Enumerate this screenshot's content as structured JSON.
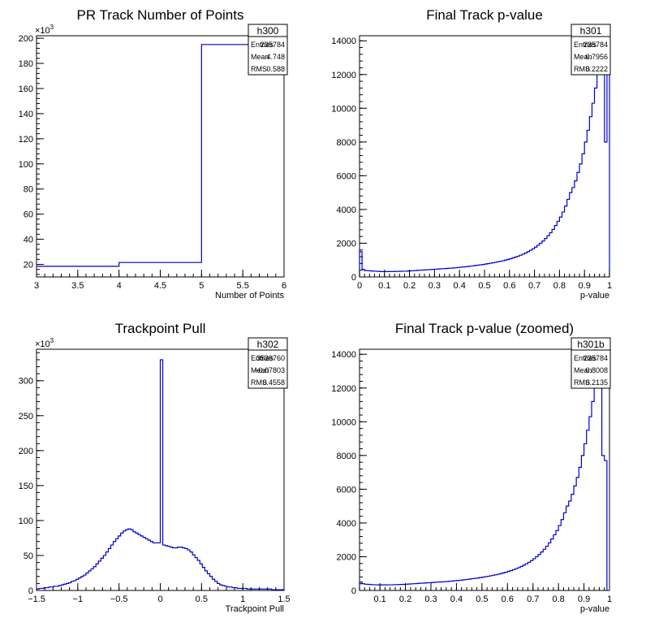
{
  "chart_data": [
    {
      "type": "histogram",
      "name": "h300",
      "title": "PR Track Number of Points",
      "xlabel": "Number of Points",
      "ylabel": "",
      "y_multiplier": "×10",
      "y_multiplier_exp": "3",
      "xlim": [
        3,
        6
      ],
      "ylim": [
        10,
        202
      ],
      "xticks": [
        3,
        3.5,
        4,
        4.5,
        5,
        5.5,
        6
      ],
      "xtick_labels": [
        "3",
        "3.5",
        "4",
        "4.5",
        "5",
        "5.5",
        "6"
      ],
      "yticks": [
        20,
        40,
        60,
        80,
        100,
        120,
        140,
        160,
        180,
        200
      ],
      "ytick_labels": [
        "20",
        "40",
        "60",
        "80",
        "100",
        "120",
        "140",
        "160",
        "180",
        "200"
      ],
      "bins": [
        [
          3,
          4,
          18.5
        ],
        [
          4,
          5,
          21.5
        ],
        [
          5,
          6,
          195
        ]
      ],
      "stats": {
        "header": "h300",
        "rows": [
          [
            "Entries",
            "235784"
          ],
          [
            "Mean",
            "4.748"
          ],
          [
            "RMS",
            "0.588"
          ]
        ]
      },
      "line_color": "#0000cc"
    },
    {
      "type": "histogram",
      "name": "h301",
      "title": "Final Track p-value",
      "xlabel": "p-value",
      "ylabel": "",
      "y_multiplier": "",
      "y_multiplier_exp": "",
      "xlim": [
        0,
        1
      ],
      "ylim": [
        0,
        14300
      ],
      "xticks": [
        0,
        0.1,
        0.2,
        0.3,
        0.4,
        0.5,
        0.6,
        0.7,
        0.8,
        0.9,
        1
      ],
      "xtick_labels": [
        "0",
        "0.1",
        "0.2",
        "0.3",
        "0.4",
        "0.5",
        "0.6",
        "0.7",
        "0.8",
        "0.9",
        "1"
      ],
      "yticks": [
        0,
        2000,
        4000,
        6000,
        8000,
        10000,
        12000,
        14000
      ],
      "ytick_labels": [
        "0",
        "2000",
        "4000",
        "6000",
        "8000",
        "10000",
        "12000",
        "14000"
      ],
      "bin_width": 0.01,
      "values": [
        1500,
        450,
        380,
        370,
        360,
        350,
        340,
        330,
        320,
        320,
        320,
        320,
        320,
        320,
        330,
        330,
        330,
        340,
        340,
        350,
        360,
        370,
        380,
        390,
        400,
        410,
        420,
        430,
        440,
        450,
        460,
        470,
        480,
        490,
        500,
        510,
        520,
        530,
        545,
        560,
        575,
        590,
        605,
        620,
        640,
        660,
        680,
        700,
        720,
        740,
        765,
        790,
        815,
        840,
        870,
        900,
        930,
        960,
        1000,
        1040,
        1080,
        1130,
        1180,
        1230,
        1290,
        1350,
        1420,
        1500,
        1580,
        1670,
        1770,
        1880,
        2000,
        2130,
        2280,
        2440,
        2620,
        2820,
        3050,
        3300,
        3550,
        3850,
        4200,
        4600,
        5000,
        5300,
        5700,
        6200,
        6700,
        7300,
        8000,
        8700,
        9500,
        10300,
        11200,
        12200,
        13000,
        13300,
        8000,
        14300
      ],
      "stats": {
        "header": "h301",
        "rows": [
          [
            "Entries",
            "235784"
          ],
          [
            "Mean",
            "0.7956"
          ],
          [
            "RMS",
            "0.2222"
          ]
        ]
      },
      "line_color": "#0000cc"
    },
    {
      "type": "histogram",
      "name": "h302",
      "title": "Trackpoint Pull",
      "xlabel": "Trackpoint Pull",
      "ylabel": "",
      "y_multiplier": "×10",
      "y_multiplier_exp": "3",
      "xlim": [
        -1.5,
        1.5
      ],
      "ylim": [
        0,
        345
      ],
      "xticks": [
        -1.5,
        -1,
        -0.5,
        0,
        0.5,
        1,
        1.5
      ],
      "xtick_labels": [
        "−1.5",
        "−1",
        "−0.5",
        "0",
        "0.5",
        "1",
        "1.5"
      ],
      "yticks": [
        0,
        50,
        100,
        150,
        200,
        250,
        300
      ],
      "ytick_labels": [
        "0",
        "50",
        "100",
        "150",
        "200",
        "250",
        "300"
      ],
      "bin_start": -1.5,
      "bin_width": 0.03,
      "values": [
        2,
        3,
        3,
        4,
        4,
        5,
        5,
        6,
        6,
        7,
        8,
        9,
        10,
        11,
        13,
        14,
        16,
        18,
        20,
        22,
        25,
        28,
        31,
        34,
        38,
        42,
        46,
        50,
        55,
        60,
        65,
        70,
        74,
        78,
        82,
        85,
        87,
        88,
        87,
        84,
        82,
        80,
        78,
        76,
        74,
        72,
        70,
        68,
        68,
        68,
        330,
        65,
        64,
        63,
        62,
        61,
        61,
        62,
        62,
        61,
        60,
        58,
        55,
        51,
        47,
        43,
        38,
        33,
        28,
        24,
        20,
        16,
        13,
        10,
        8,
        7,
        6,
        5,
        5,
        4,
        4,
        3,
        3,
        3,
        3,
        2,
        2,
        2,
        2,
        2,
        2,
        2,
        2,
        2,
        2,
        1,
        1,
        1,
        1,
        1
      ],
      "stats": {
        "header": "h302",
        "rows": [
          [
            "Entries",
            "3536760"
          ],
          [
            "Mean",
            "−0.07803"
          ],
          [
            "RMS",
            "0.4558"
          ]
        ]
      },
      "line_color": "#0000cc"
    },
    {
      "type": "histogram",
      "name": "h301b",
      "title": "Final Track p-value (zoomed)",
      "xlabel": "p-value",
      "ylabel": "",
      "y_multiplier": "",
      "y_multiplier_exp": "",
      "xlim": [
        0.02,
        1.0
      ],
      "ylim": [
        0,
        14300
      ],
      "xticks": [
        0.1,
        0.2,
        0.3,
        0.4,
        0.5,
        0.6,
        0.7,
        0.8,
        0.9,
        1
      ],
      "xtick_labels": [
        "0.1",
        "0.2",
        "0.3",
        "0.4",
        "0.5",
        "0.6",
        "0.7",
        "0.8",
        "0.9",
        "1"
      ],
      "yticks": [
        0,
        2000,
        4000,
        6000,
        8000,
        10000,
        12000,
        14000
      ],
      "ytick_labels": [
        "0",
        "2000",
        "4000",
        "6000",
        "8000",
        "10000",
        "12000",
        "14000"
      ],
      "bin_start": 0.02,
      "bin_width": 0.01,
      "values": [
        500,
        400,
        370,
        360,
        350,
        340,
        335,
        330,
        330,
        330,
        330,
        335,
        335,
        340,
        345,
        350,
        355,
        360,
        370,
        380,
        390,
        400,
        410,
        420,
        430,
        440,
        450,
        460,
        470,
        480,
        490,
        500,
        510,
        520,
        530,
        545,
        560,
        575,
        590,
        605,
        620,
        640,
        660,
        680,
        700,
        720,
        740,
        765,
        790,
        815,
        840,
        870,
        900,
        930,
        960,
        1000,
        1040,
        1080,
        1130,
        1180,
        1230,
        1290,
        1350,
        1420,
        1500,
        1580,
        1670,
        1770,
        1880,
        2000,
        2130,
        2280,
        2440,
        2620,
        2820,
        3050,
        3300,
        3550,
        3850,
        4200,
        4600,
        5000,
        5300,
        5700,
        6200,
        6700,
        7300,
        8000,
        8700,
        9500,
        10300,
        11200,
        12200,
        13000,
        13300,
        8000,
        7700
      ],
      "stats": {
        "header": "h301b",
        "rows": [
          [
            "Entries",
            "235784"
          ],
          [
            "Mean",
            "0.8008"
          ],
          [
            "RMS",
            "0.2135"
          ]
        ]
      },
      "line_color": "#0000cc"
    }
  ]
}
